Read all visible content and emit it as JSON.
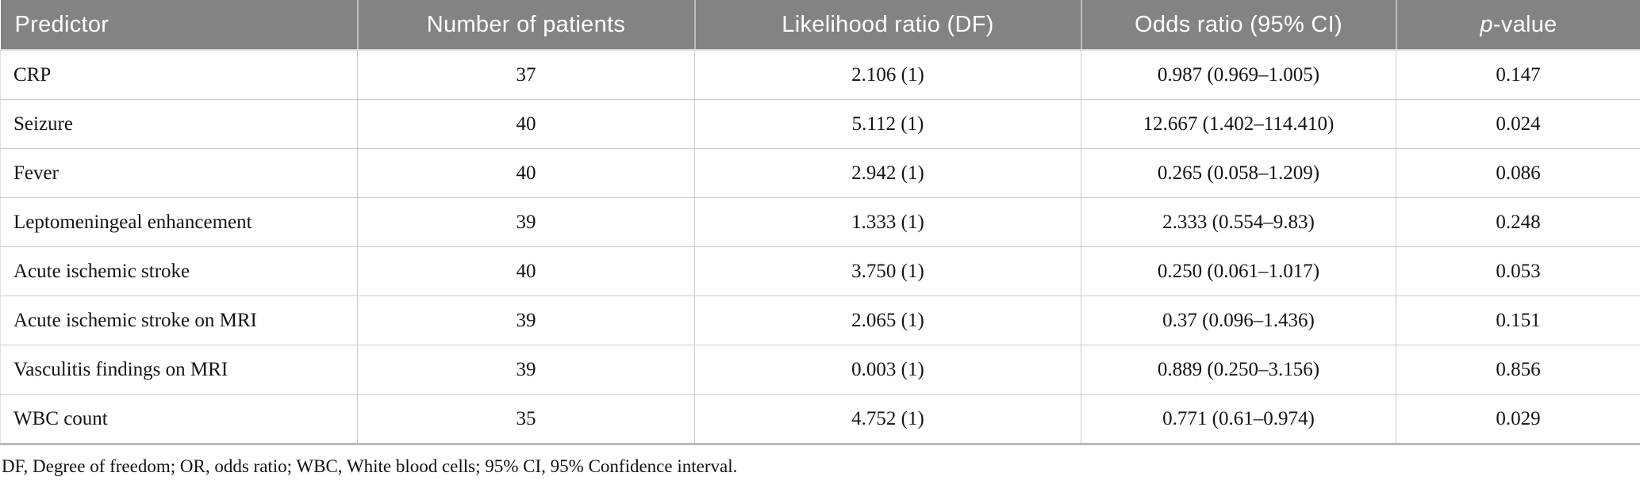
{
  "table": {
    "columns": [
      {
        "label": "Predictor",
        "italic_first_char": false
      },
      {
        "label": "Number of patients",
        "italic_first_char": false
      },
      {
        "label": "Likelihood ratio (DF)",
        "italic_first_char": false
      },
      {
        "label": "Odds ratio (95% CI)",
        "italic_first_char": false
      },
      {
        "label": "p-value",
        "italic_first_char": true
      }
    ],
    "rows": [
      {
        "predictor": "CRP",
        "n_patients": "37",
        "likelihood_ratio": "2.106 (1)",
        "odds_ratio": "0.987 (0.969–1.005)",
        "p_value": "0.147"
      },
      {
        "predictor": "Seizure",
        "n_patients": "40",
        "likelihood_ratio": "5.112 (1)",
        "odds_ratio": "12.667 (1.402–114.410)",
        "p_value": "0.024"
      },
      {
        "predictor": "Fever",
        "n_patients": "40",
        "likelihood_ratio": "2.942 (1)",
        "odds_ratio": "0.265 (0.058–1.209)",
        "p_value": "0.086"
      },
      {
        "predictor": "Leptomeningeal enhancement",
        "n_patients": "39",
        "likelihood_ratio": "1.333 (1)",
        "odds_ratio": "2.333 (0.554–9.83)",
        "p_value": "0.248"
      },
      {
        "predictor": "Acute ischemic stroke",
        "n_patients": "40",
        "likelihood_ratio": "3.750 (1)",
        "odds_ratio": "0.250 (0.061–1.017)",
        "p_value": "0.053"
      },
      {
        "predictor": "Acute ischemic stroke on MRI",
        "n_patients": "39",
        "likelihood_ratio": "2.065 (1)",
        "odds_ratio": "0.37 (0.096–1.436)",
        "p_value": "0.151"
      },
      {
        "predictor": "Vasculitis findings on MRI",
        "n_patients": "39",
        "likelihood_ratio": "0.003 (1)",
        "odds_ratio": "0.889 (0.250–3.156)",
        "p_value": "0.856"
      },
      {
        "predictor": "WBC count",
        "n_patients": "35",
        "likelihood_ratio": "4.752 (1)",
        "odds_ratio": "0.771 (0.61–0.974)",
        "p_value": "0.029"
      }
    ],
    "footnote": "DF, Degree of freedom; OR, odds ratio; WBC, White blood cells; 95% CI, 95% Confidence interval."
  },
  "colors": {
    "header_bg": "#838383",
    "header_text": "#ffffff",
    "cell_border": "#cbcbcb",
    "table_bottom_border": "#b9b9b9",
    "body_text": "#141414"
  }
}
